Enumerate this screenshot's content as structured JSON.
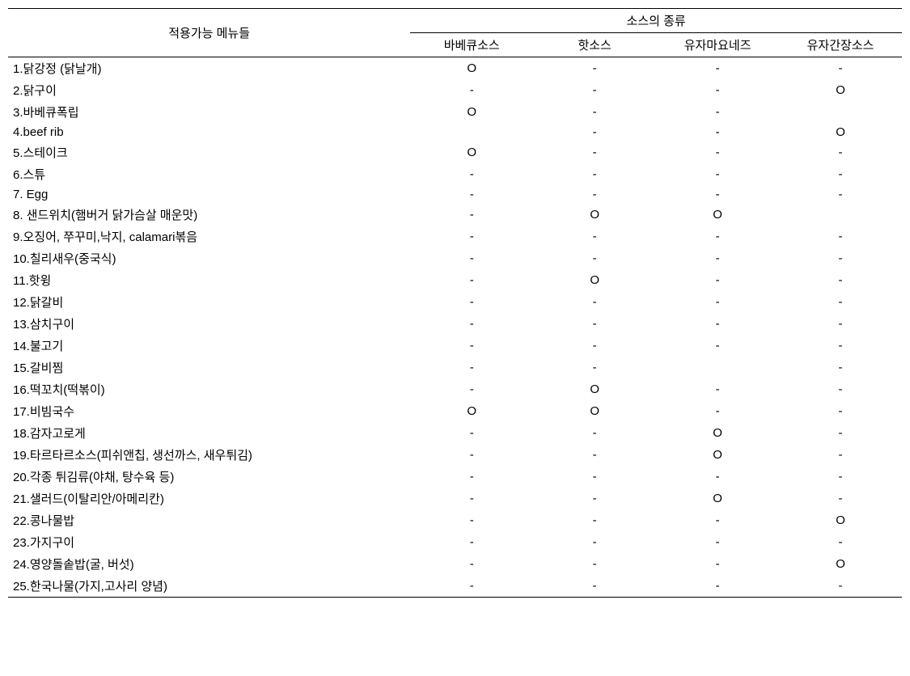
{
  "table": {
    "header": {
      "menu_label": "적용가능   메뉴들",
      "sauce_group_label": "소스의 종류",
      "sauce_columns": [
        "바베큐소스",
        "핫소스",
        "유자마요네즈",
        "유자간장소스"
      ]
    },
    "rows": [
      {
        "menu": "1.닭강정 (닭날개)",
        "v": [
          "O",
          "-",
          "-",
          "-"
        ]
      },
      {
        "menu": "2.닭구이",
        "v": [
          "-",
          "-",
          "-",
          "O"
        ]
      },
      {
        "menu": "3.바베큐폭립",
        "v": [
          "O",
          "-",
          "-",
          ""
        ]
      },
      {
        "menu": "4.beef rib",
        "v": [
          "",
          "-",
          "-",
          "O"
        ]
      },
      {
        "menu": "5.스테이크",
        "v": [
          "O",
          "-",
          "-",
          "-"
        ]
      },
      {
        "menu": "6.스튜",
        "v": [
          "-",
          "-",
          "-",
          "-"
        ]
      },
      {
        "menu": "7. Egg",
        "v": [
          "-",
          "-",
          "-",
          "-"
        ]
      },
      {
        "menu": "8. 샌드위치(햄버거 닭가슴살 매운맛)",
        "v": [
          "-",
          "O",
          "O",
          ""
        ]
      },
      {
        "menu": "9.오징어, 쭈꾸미,낙지, calamari볶음",
        "v": [
          "-",
          "-",
          "-",
          "-"
        ]
      },
      {
        "menu": "10.칠리새우(중국식)",
        "v": [
          "-",
          "-",
          "-",
          "-"
        ]
      },
      {
        "menu": "11.핫윙",
        "v": [
          "-",
          "O",
          "-",
          "-"
        ]
      },
      {
        "menu": "12.닭갈비",
        "v": [
          "-",
          "-",
          "-",
          "-"
        ]
      },
      {
        "menu": "13.삼치구이",
        "v": [
          "-",
          "-",
          "-",
          "-"
        ]
      },
      {
        "menu": "14.불고기",
        "v": [
          "-",
          "-",
          "-",
          "-"
        ]
      },
      {
        "menu": "15.갈비찜",
        "v": [
          "-",
          "-",
          "",
          "-"
        ]
      },
      {
        "menu": "16.떡꼬치(떡볶이)",
        "v": [
          "-",
          "O",
          "-",
          "-"
        ]
      },
      {
        "menu": "17.비빔국수",
        "v": [
          "O",
          "O",
          "-",
          "-"
        ]
      },
      {
        "menu": "18.감자고로게",
        "v": [
          "-",
          "-",
          "O",
          "-"
        ]
      },
      {
        "menu": "19.타르타르소스(피쉬앤칩, 생선까스, 새우튀김)",
        "v": [
          "-",
          "-",
          "O",
          "-"
        ]
      },
      {
        "menu": "20.각종 튀김류(야채, 탕수육 등)",
        "v": [
          "-",
          "-",
          "-",
          "-"
        ]
      },
      {
        "menu": "21.샐러드(이탈리안/아메리칸)",
        "v": [
          "-",
          "-",
          "O",
          "-"
        ]
      },
      {
        "menu": "22.콩나물밥",
        "v": [
          "-",
          "-",
          "-",
          "O"
        ]
      },
      {
        "menu": "23.가지구이",
        "v": [
          "-",
          "-",
          "-",
          "-"
        ]
      },
      {
        "menu": "24.영양돌솥밥(굴, 버섯)",
        "v": [
          "-",
          "-",
          "-",
          "O"
        ]
      },
      {
        "menu": "25.한국나물(가지,고사리 양념)",
        "v": [
          "-",
          "-",
          "-",
          "-"
        ]
      }
    ]
  },
  "style": {
    "background_color": "#ffffff",
    "text_color": "#000000",
    "border_color": "#000000",
    "font_size_pt": 11,
    "font_family": "Malgun Gothic"
  }
}
